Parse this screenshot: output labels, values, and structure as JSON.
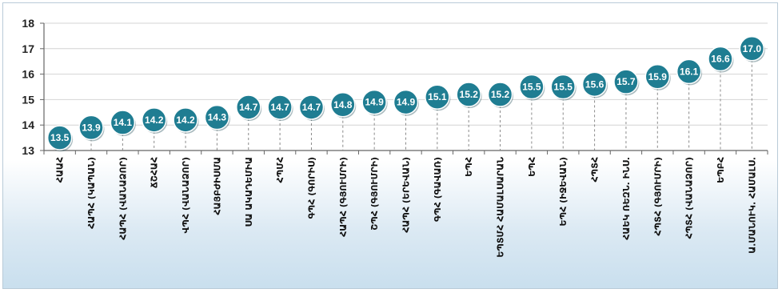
{
  "chart_data": {
    "type": "scatter",
    "title": "",
    "xlabel": "",
    "ylabel": "",
    "ylim": [
      13,
      18
    ],
    "yticks": [
      13,
      14,
      15,
      16,
      17,
      18
    ],
    "grid": true,
    "legend": "none",
    "categories": [
      "ՀԱԱՀ",
      "ՀԱՊՀ (ԿԱՊԱՆ)",
      "ՀԱՊՀ (ՎԱՆԱՁՈՐ)",
      "ՃՇՀԱՀ",
      "ՎՊՀ (ՎԱՆԱՁՈՐ)",
      "ՀԱՅԲԺԻՍՄԱ",
      "ՍԱ ԱԿԱԴԵՄԻԱ",
      "ՀՊՄՀ",
      "ԳՊՀ (ԳՈՐԻՍ)",
      "ՀԱՊՀ (ԳՅՈՒՄՐԻ)",
      "ՇՊՀ (ԳՅՈՒՄՐԻ)",
      "ՀԱՊՀ (ԵՐԵՎԱՆ)",
      "ԳՊՀ (ԳԱՎԱՌ)",
      "ԵՊՀ",
      "ԵՊՏՄՀ ՀԱՄԱԼՍԱՐԱՆ",
      "ԵՊՀ",
      "ԵՊՀ (ԻՋԵՎԱՆ)",
      "ՀՊՏՀ",
      "ՀԱԵԿ ՌԵԶՆ. ԻՆՍ.",
      "ՀՊՏՀ (ԳՅՈՒՄՐԻ)",
      "ՀՊՏՀ (ՎԱՆԱՁՈՐ)",
      "ԵՊԲՀ",
      "Ա.ՄԱՆՈՒԿ. ՀԱՄԱԼՍ."
    ],
    "values": [
      13.5,
      13.9,
      14.1,
      14.2,
      14.2,
      14.3,
      14.7,
      14.7,
      14.7,
      14.8,
      14.9,
      14.9,
      15.1,
      15.2,
      15.2,
      15.5,
      15.5,
      15.6,
      15.7,
      15.9,
      16.1,
      16.6,
      17.0
    ],
    "data_labels": [
      "13.5",
      "13.9",
      "14.1",
      "14.2",
      "14.2",
      "14.3",
      "14.7",
      "14.7",
      "14.7",
      "14.8",
      "14.9",
      "14.9",
      "15.1",
      "15.2",
      "15.2",
      "15.5",
      "15.5",
      "15.6",
      "15.7",
      "15.9",
      "16.1",
      "16.6",
      "17.0"
    ],
    "marker_color": "#1f7d92",
    "drop_line_color": "#8a8a8a"
  }
}
